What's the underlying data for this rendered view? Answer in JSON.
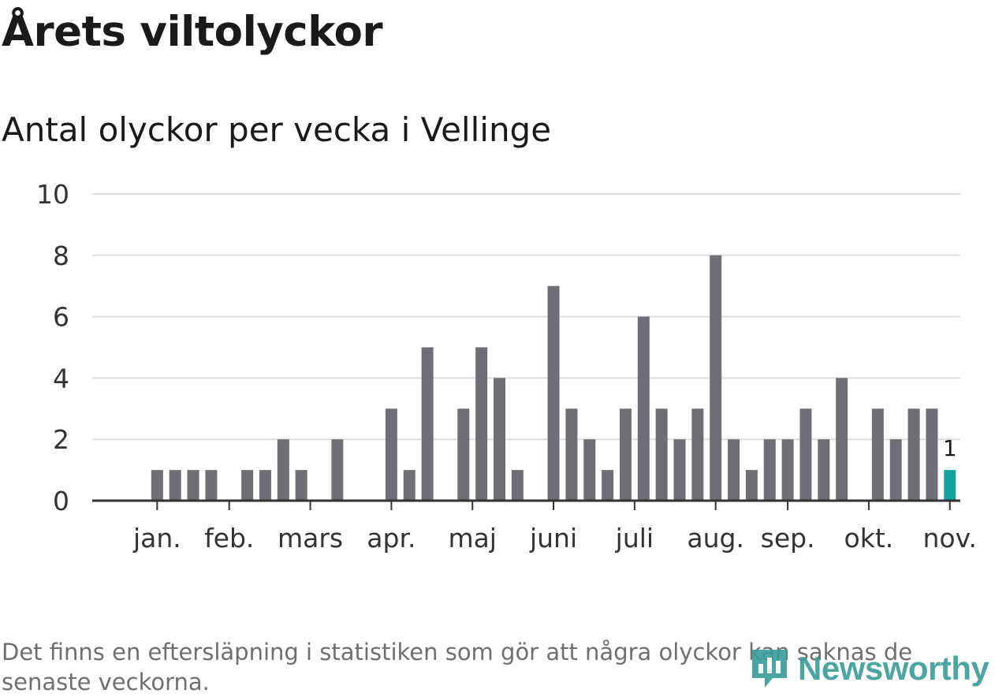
{
  "header": {
    "title": "Årets viltolyckor",
    "subtitle": "Antal olyckor per vecka i Vellinge"
  },
  "footer": {
    "note": "Det finns en eftersläpning i statistiken som gör att några olyckor kan saknas de senaste veckorna.",
    "logo_text": "Newsworthy"
  },
  "colors": {
    "bar": "#6f6e73",
    "highlight": "#11a39b",
    "grid": "#dddddd",
    "axis": "#333333",
    "brand": "#3a9c97"
  },
  "chart_data": {
    "type": "bar",
    "title": "Antal olyckor per vecka i Vellinge",
    "xlabel": "",
    "ylabel": "",
    "ylim": [
      0,
      10
    ],
    "yticks": [
      0,
      2,
      4,
      6,
      8,
      10
    ],
    "grid": true,
    "weeks": [
      1,
      2,
      3,
      4,
      5,
      6,
      7,
      8,
      9,
      10,
      11,
      12,
      13,
      14,
      15,
      16,
      17,
      18,
      19,
      20,
      21,
      22,
      23,
      24,
      25,
      26,
      27,
      28,
      29,
      30,
      31,
      32,
      33,
      34,
      35,
      36,
      37,
      38,
      39,
      40,
      41,
      42,
      43,
      44,
      45,
      46
    ],
    "values": [
      0,
      1,
      1,
      1,
      1,
      0,
      1,
      1,
      2,
      1,
      0,
      2,
      0,
      0,
      3,
      1,
      5,
      0,
      3,
      5,
      4,
      1,
      0,
      7,
      3,
      2,
      1,
      3,
      6,
      3,
      2,
      3,
      8,
      2,
      1,
      2,
      2,
      3,
      2,
      4,
      0,
      3,
      2,
      3,
      3,
      1
    ],
    "highlight_week": 46,
    "highlight_label": "1",
    "month_ticks": [
      {
        "label": "jan.",
        "week": 2
      },
      {
        "label": "feb.",
        "week": 6
      },
      {
        "label": "mars",
        "week": 10.5
      },
      {
        "label": "apr.",
        "week": 15
      },
      {
        "label": "maj",
        "week": 19.5
      },
      {
        "label": "juni",
        "week": 24
      },
      {
        "label": "juli",
        "week": 28.5
      },
      {
        "label": "aug.",
        "week": 33
      },
      {
        "label": "sep.",
        "week": 37
      },
      {
        "label": "okt.",
        "week": 41.5
      },
      {
        "label": "nov.",
        "week": 46
      }
    ]
  }
}
